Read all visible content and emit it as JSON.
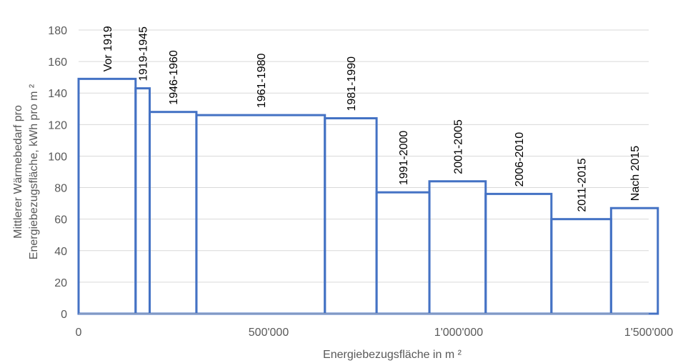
{
  "chart_data": {
    "type": "bar",
    "subtype": "variable-width histogram",
    "xlabel": "Energiebezugsfläche in m ²",
    "ylabel_lines": [
      "Mittlerer Wärmebedarf pro",
      "Energiebezugsfläche, kWh pro m ²"
    ],
    "xlim": [
      0,
      1500000
    ],
    "ylim": [
      0,
      180
    ],
    "x_ticks": [
      {
        "value": 0,
        "label": "0"
      },
      {
        "value": 500000,
        "label": "500'000"
      },
      {
        "value": 1000000,
        "label": "1'000'000"
      },
      {
        "value": 1500000,
        "label": "1'500'000"
      }
    ],
    "y_ticks": [
      0,
      20,
      40,
      60,
      80,
      100,
      120,
      140,
      160,
      180
    ],
    "grid": "horizontal",
    "bars": [
      {
        "label": "Vor 1919",
        "x_start": 0,
        "x_end": 150000,
        "value": 149
      },
      {
        "label": "1919-1945",
        "x_start": 150000,
        "x_end": 187000,
        "value": 143
      },
      {
        "label": "1946-1960",
        "x_start": 187000,
        "x_end": 310000,
        "value": 128
      },
      {
        "label": "1961-1980",
        "x_start": 310000,
        "x_end": 648000,
        "value": 126
      },
      {
        "label": "1981-1990",
        "x_start": 648000,
        "x_end": 784000,
        "value": 124
      },
      {
        "label": "1991-2000",
        "x_start": 784000,
        "x_end": 923000,
        "value": 77
      },
      {
        "label": "2001-2005",
        "x_start": 923000,
        "x_end": 1071000,
        "value": 84
      },
      {
        "label": "2006-2010",
        "x_start": 1071000,
        "x_end": 1244000,
        "value": 76
      },
      {
        "label": "2011-2015",
        "x_start": 1244000,
        "x_end": 1401000,
        "value": 60
      },
      {
        "label": "Nach 2015",
        "x_start": 1401000,
        "x_end": 1524000,
        "value": 67
      }
    ],
    "colors": {
      "bar_stroke": "#4472C4",
      "grid": "#D9D9D9",
      "axis": "#BFBFBF",
      "text": "#595959"
    }
  }
}
